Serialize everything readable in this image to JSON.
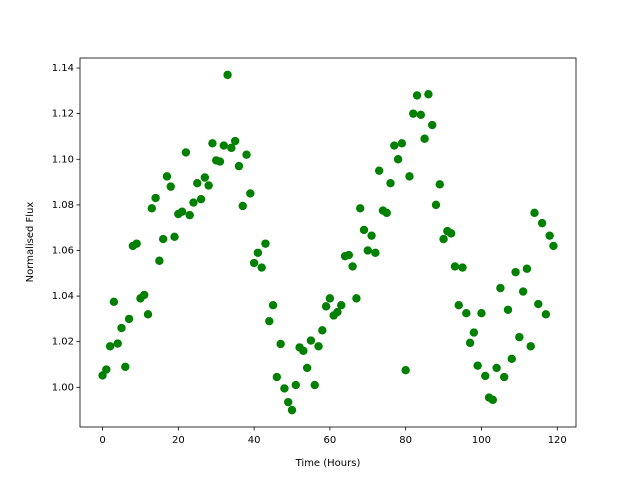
{
  "chart_data": {
    "type": "scatter",
    "xlabel": "Time (Hours)",
    "ylabel": "Normalised Flux",
    "color": "#008000",
    "x": [
      0,
      1,
      2,
      3,
      4,
      5,
      6,
      7,
      8,
      9,
      10,
      11,
      12,
      13,
      14,
      15,
      16,
      17,
      18,
      19,
      20,
      21,
      22,
      23,
      24,
      25,
      26,
      27,
      28,
      29,
      30,
      31,
      32,
      33,
      34,
      35,
      36,
      37,
      38,
      39,
      40,
      41,
      42,
      43,
      44,
      45,
      46,
      47,
      48,
      49,
      50,
      51,
      52,
      53,
      54,
      55,
      56,
      57,
      58,
      59,
      60,
      61,
      62,
      63,
      64,
      65,
      66,
      67,
      68,
      69,
      70,
      71,
      72,
      73,
      74,
      75,
      76,
      77,
      78,
      79,
      80,
      81,
      82,
      83,
      84,
      85,
      86,
      87,
      88,
      89,
      90,
      91,
      92,
      93,
      94,
      95,
      96,
      97,
      98,
      99,
      100,
      101,
      102,
      103,
      104,
      105,
      106,
      107,
      108,
      109,
      110,
      111,
      112,
      113,
      114,
      115,
      116,
      117,
      118,
      119
    ],
    "values": [
      1.0052,
      1.0078,
      1.018,
      1.0375,
      1.0192,
      1.026,
      1.009,
      1.03,
      1.062,
      1.063,
      1.039,
      1.0405,
      1.032,
      1.0785,
      1.083,
      1.0555,
      1.065,
      1.0925,
      1.088,
      1.066,
      1.076,
      1.077,
      1.103,
      1.0755,
      1.081,
      1.0895,
      1.0825,
      1.092,
      1.0885,
      1.107,
      1.0995,
      1.099,
      1.106,
      1.137,
      1.105,
      1.108,
      1.097,
      1.0795,
      1.102,
      1.085,
      1.0545,
      1.059,
      1.0525,
      1.063,
      1.029,
      1.036,
      1.0045,
      1.019,
      0.9995,
      0.9935,
      0.99,
      1.001,
      1.0175,
      1.016,
      1.0085,
      1.0205,
      1.001,
      1.018,
      1.025,
      1.0355,
      1.039,
      1.0315,
      1.033,
      1.036,
      1.0575,
      1.058,
      1.053,
      1.039,
      1.0785,
      1.069,
      1.06,
      1.0665,
      1.059,
      1.095,
      1.0775,
      1.0765,
      1.0895,
      1.106,
      1.1,
      1.107,
      1.0075,
      1.0925,
      1.12,
      1.128,
      1.1195,
      1.109,
      1.1285,
      1.115,
      1.08,
      1.089,
      1.065,
      1.0685,
      1.0675,
      1.053,
      1.036,
      1.0525,
      1.0325,
      1.0195,
      1.024,
      1.0095,
      1.0325,
      1.005,
      0.9955,
      0.9945,
      1.0085,
      1.0435,
      1.0045,
      1.034,
      1.0125,
      1.0505,
      1.022,
      1.042,
      1.052,
      1.018,
      1.0765,
      1.0365,
      1.072,
      1.032,
      1.0665,
      1.062
    ],
    "xlim": [
      -5.95,
      124.95
    ],
    "ylim": [
      0.9826,
      1.1444
    ],
    "xticks": [
      0,
      20,
      40,
      60,
      80,
      100,
      120
    ],
    "yticks": [
      {
        "value": 1.0,
        "label": "1.00"
      },
      1.02,
      1.04,
      1.06,
      1.08,
      {
        "value": 1.1,
        "label": "1.10"
      },
      1.12,
      1.14
    ]
  }
}
